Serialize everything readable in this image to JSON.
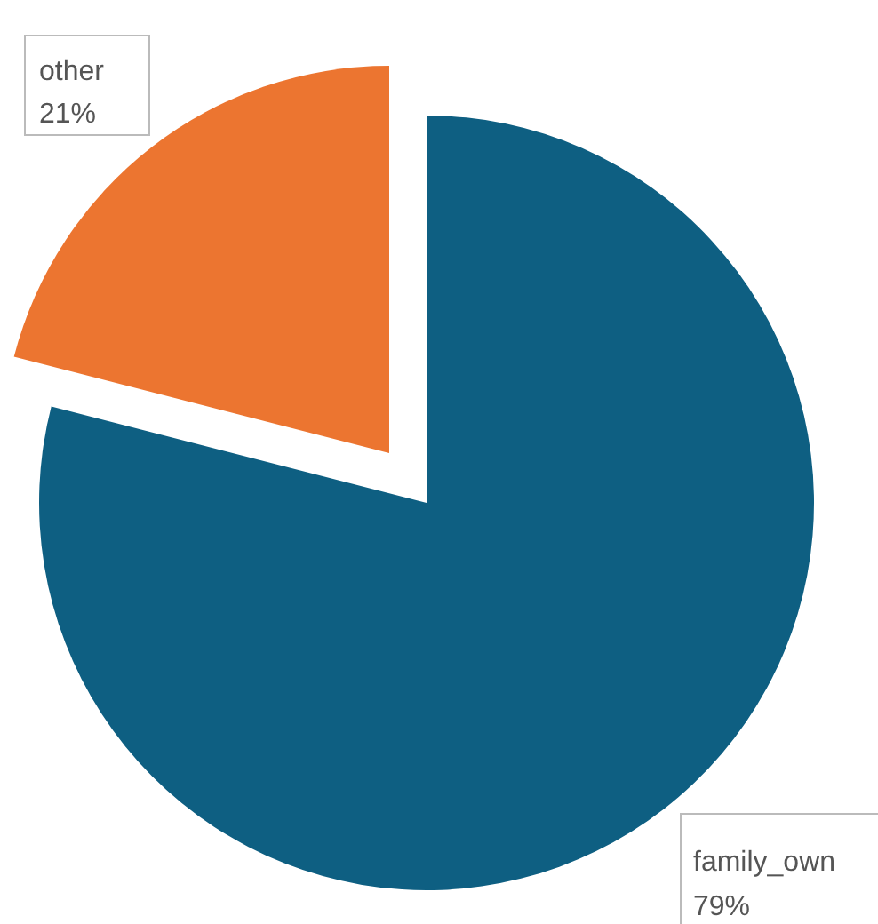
{
  "chart_data": {
    "type": "pie",
    "categories": [
      "family_own",
      "other"
    ],
    "values": [
      79,
      21
    ],
    "colors": [
      "#0e5f82",
      "#ec7530"
    ],
    "value_labels": [
      "79%",
      "21%"
    ]
  }
}
